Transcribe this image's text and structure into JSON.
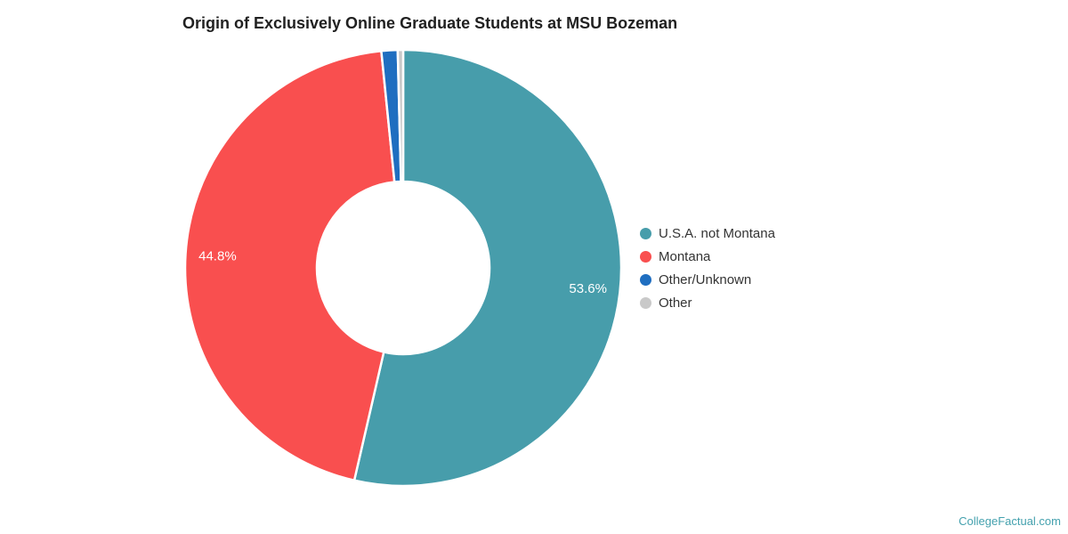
{
  "page": {
    "background": "#ffffff",
    "watermark": "CollegeFactual.com",
    "watermark_color": "#44a1ae"
  },
  "chart_data": {
    "type": "pie",
    "subtype": "donut",
    "title": "Origin of Exclusively Online Graduate Students at MSU Bozeman",
    "categories": [
      "U.S.A. not Montana",
      "Montana",
      "Other/Unknown",
      "Other"
    ],
    "values": [
      53.6,
      44.8,
      1.2,
      0.4
    ],
    "unit": "%",
    "colors": [
      "#479dab",
      "#f94f4f",
      "#1f6ec0",
      "#c9c9c9"
    ],
    "data_labels": [
      "53.6%",
      "44.8%",
      "",
      ""
    ],
    "data_label_color": "#ffffff",
    "slice_border_color": "#ffffff",
    "donut_hole_ratio": 0.4,
    "start_angle_deg": 0,
    "direction": "clockwise",
    "legend": {
      "position": "right",
      "entries": [
        "U.S.A. not Montana",
        "Montana",
        "Other/Unknown",
        "Other"
      ]
    }
  }
}
